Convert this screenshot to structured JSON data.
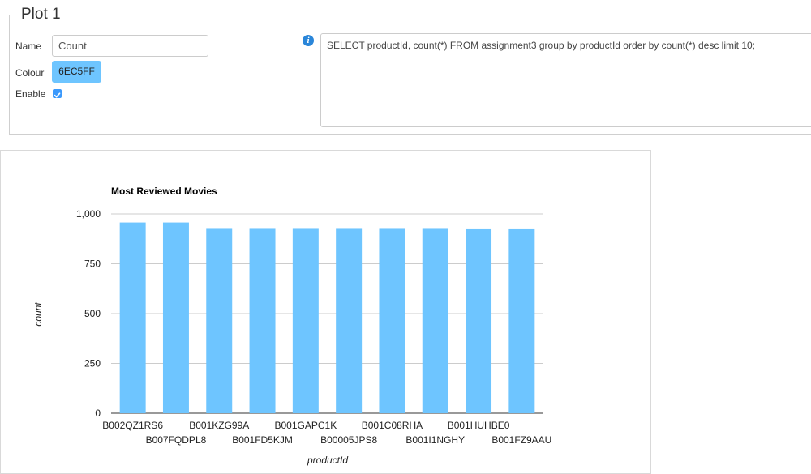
{
  "panel": {
    "legend": "Plot 1",
    "name_label": "Name",
    "name_value": "Count",
    "colour_label": "Colour",
    "colour_value": "6EC5FF",
    "enable_label": "Enable",
    "enable_checked": true,
    "info_icon": "info-icon",
    "query": "SELECT productId, count(*) FROM assignment3 group by productId order by count(*) desc limit 10;"
  },
  "chart_data": {
    "type": "bar",
    "title": "Most Reviewed Movies",
    "xlabel": "productId",
    "ylabel": "count",
    "color": "#6EC5FF",
    "ylim": [
      0,
      1000
    ],
    "yticks": [
      0,
      250,
      500,
      750,
      1000
    ],
    "ytick_labels": [
      "0",
      "250",
      "500",
      "750",
      "1,000"
    ],
    "grid": true,
    "categories": [
      "B002QZ1RS6",
      "B007FQDPL8",
      "B001KZG99A",
      "B001FD5KJM",
      "B001GAPC1K",
      "B00005JPS8",
      "B001C08RHA",
      "B001I1NGHY",
      "B001HUHBE0",
      "B001FZ9AAU"
    ],
    "values": [
      957,
      957,
      925,
      925,
      925,
      925,
      925,
      925,
      923,
      923
    ]
  }
}
